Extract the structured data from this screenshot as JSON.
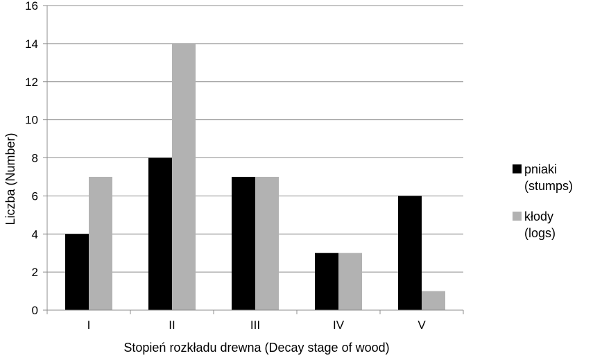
{
  "chart_data": {
    "type": "bar",
    "categories": [
      "I",
      "II",
      "III",
      "IV",
      "V"
    ],
    "series": [
      {
        "name": "pniaki\n(stumps)",
        "values": [
          4,
          8,
          7,
          3,
          6
        ],
        "color": "#000000"
      },
      {
        "name": "kłody\n(logs)",
        "values": [
          7,
          14,
          7,
          3,
          1
        ],
        "color": "#b2b2b2"
      }
    ],
    "title": "",
    "xlabel": "Stopień rozkładu drewna (Decay stage of wood)",
    "ylabel": "Liczba (Number)",
    "ylim": [
      0,
      16
    ],
    "yticks": [
      0,
      2,
      4,
      6,
      8,
      10,
      12,
      14,
      16
    ],
    "grid": true,
    "legend": "right"
  }
}
